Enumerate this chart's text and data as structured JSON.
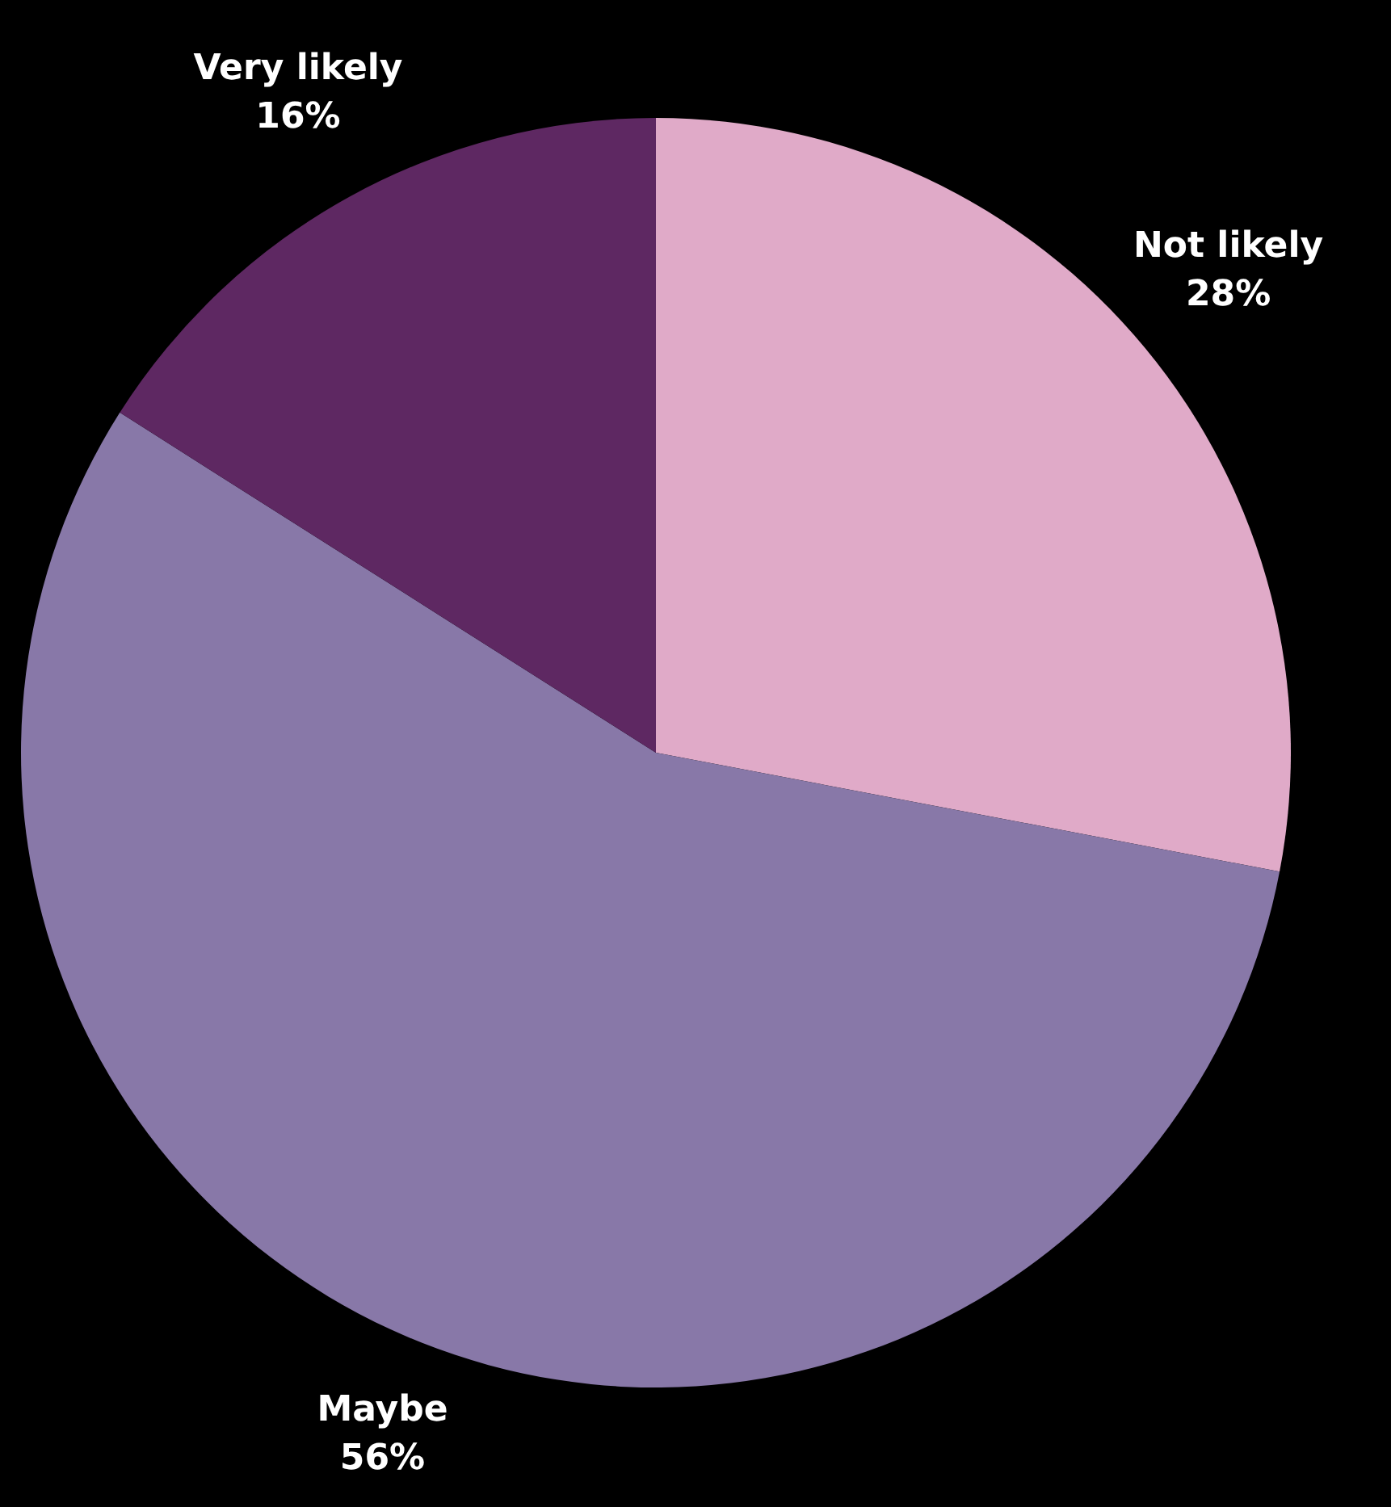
{
  "chart_data": {
    "type": "pie",
    "categories": [
      "Not likely",
      "Maybe",
      "Very likely"
    ],
    "values": [
      28,
      56,
      16
    ],
    "colors": [
      "#e0aac8",
      "#8878a8",
      "#5e2862"
    ],
    "value_labels": [
      "28%",
      "56%",
      "16%"
    ]
  }
}
